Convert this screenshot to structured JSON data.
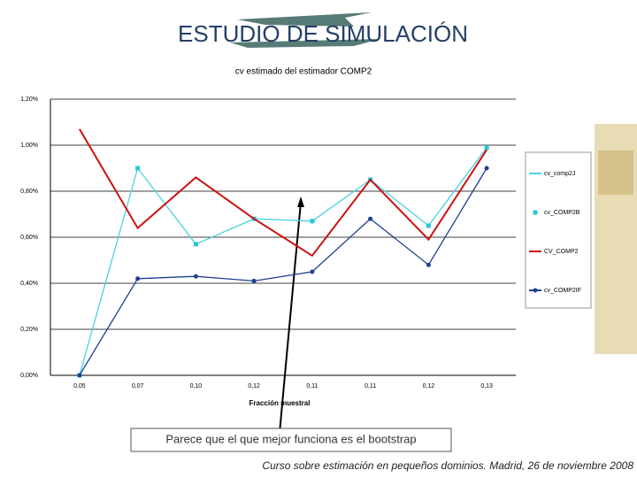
{
  "slide": {
    "title": "ESTUDIO DE SIMULACIÓN",
    "note": "Parece que el que mejor funciona es el bootstrap",
    "footer": "Curso sobre estimación en pequeños dominios. Madrid, 26 de noviembre 2008"
  },
  "chart_data": {
    "type": "line",
    "title": "cv estimado del estimador COMP2",
    "x_label": "Fracción muestral",
    "categories": [
      "0,05",
      "0,07",
      "0,10",
      "0,12",
      "0,11",
      "0,11",
      "0,12",
      "0,13"
    ],
    "series": [
      {
        "name": "cv_comp2J",
        "color": "#4dd0e1",
        "style": "line",
        "values": [
          0,
          0.9,
          0.57,
          0.68,
          0.67,
          0.85,
          0.65,
          0.99
        ]
      },
      {
        "name": "cv_COMP2B",
        "color": "#26c6da",
        "style": "markers",
        "marker": "square",
        "values": [
          0,
          0.9,
          0.57,
          0.68,
          0.67,
          0.85,
          0.65,
          0.99
        ]
      },
      {
        "name": "CV_COMP2",
        "color": "#cc1111",
        "style": "line",
        "values": [
          1.07,
          0.64,
          0.86,
          0.68,
          0.52,
          0.85,
          0.59,
          0.98
        ]
      },
      {
        "name": "cv_COMP2IF",
        "color": "#1f3f8f",
        "style": "line+markers",
        "marker": "circle",
        "values": [
          0,
          0.42,
          0.43,
          0.41,
          0.45,
          0.68,
          0.48,
          0.9
        ]
      }
    ],
    "ylim": [
      0,
      1.2
    ],
    "yticks": [
      {
        "value": 0,
        "label": "0,00%"
      },
      {
        "value": 0.2,
        "label": "0,20%"
      },
      {
        "value": 0.4,
        "label": "0,40%"
      },
      {
        "value": 0.6,
        "label": "0,60%"
      },
      {
        "value": 0.8,
        "label": "0,80%"
      },
      {
        "value": 1,
        "label": "1,00%"
      },
      {
        "value": 1.2,
        "label": "1,20%"
      }
    ],
    "grid": true
  }
}
